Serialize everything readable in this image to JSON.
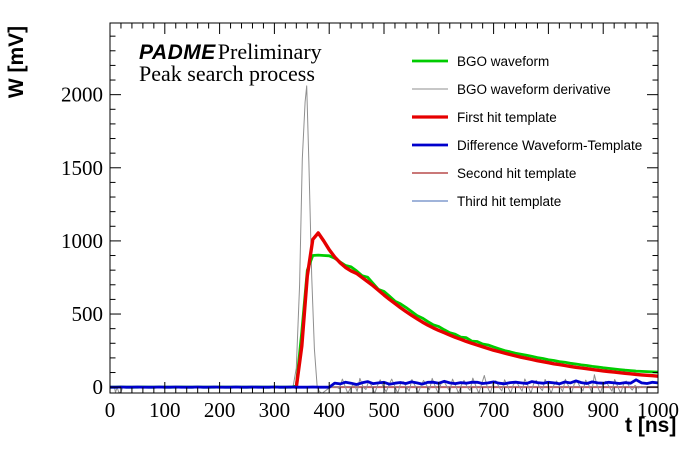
{
  "header": {
    "experiment": "PADME",
    "status": "Preliminary",
    "subtitle": "Peak search process"
  },
  "axes": {
    "x": {
      "title": "t [ns]",
      "min": 0,
      "max": 1000,
      "major_ticks": [
        0,
        100,
        200,
        300,
        400,
        500,
        600,
        700,
        800,
        900,
        1000
      ],
      "minor_step": 20
    },
    "y": {
      "title": "W [mV]",
      "min": -40,
      "max": 2490,
      "major_ticks": [
        0,
        500,
        1000,
        1500,
        2000
      ],
      "minor_step": 100,
      "minor_max": 2400
    }
  },
  "chart_data": {
    "type": "line",
    "title": "Peak search process",
    "xlabel": "t [ns]",
    "ylabel": "W [mV]",
    "xlim": [
      0,
      1000
    ],
    "ylim": [
      -40,
      2490
    ],
    "grid": false,
    "legend_position": "top-right",
    "series": [
      {
        "id": "bgo-waveform",
        "name": "BGO waveform",
        "color": "#00cc00",
        "line_width": 2.8,
        "t0": 0,
        "dt": 10,
        "values": [
          0,
          0,
          1,
          0,
          0,
          0,
          1,
          0,
          0,
          1,
          0,
          0,
          0,
          1,
          0,
          0,
          1,
          0,
          0,
          0,
          1,
          0,
          0,
          1,
          0,
          0,
          0,
          1,
          0,
          0,
          1,
          0,
          0,
          0,
          8,
          380,
          800,
          900,
          903,
          900,
          898,
          882,
          856,
          832,
          822,
          795,
          762,
          752,
          710,
          668,
          655,
          622,
          588,
          570,
          545,
          518,
          490,
          472,
          448,
          426,
          414,
          392,
          372,
          362,
          342,
          338,
          315,
          312,
          295,
          288,
          275,
          262,
          250,
          242,
          232,
          225,
          218,
          210,
          202,
          196,
          188,
          182,
          175,
          170,
          163,
          158,
          152,
          148,
          142,
          138,
          132,
          128,
          124,
          120,
          116,
          113,
          110,
          108,
          106,
          104,
          102
        ]
      },
      {
        "id": "bgo-derivative",
        "name": "BGO waveform derivative",
        "color": "#8f8f8f",
        "line_width": 1,
        "points": [
          [
            0,
            0
          ],
          [
            8,
            0
          ],
          [
            10,
            -36
          ],
          [
            13,
            -2
          ],
          [
            16,
            -36
          ],
          [
            20,
            -36
          ],
          [
            23,
            0
          ],
          [
            328,
            0
          ],
          [
            334,
            0
          ],
          [
            340,
            130
          ],
          [
            346,
            700
          ],
          [
            351,
            1560
          ],
          [
            356,
            1950
          ],
          [
            359,
            2060
          ],
          [
            363,
            1530
          ],
          [
            368,
            760
          ],
          [
            373,
            260
          ],
          [
            378,
            10
          ],
          [
            382,
            -30
          ],
          [
            387,
            -42
          ],
          [
            393,
            -25
          ],
          [
            399,
            -8
          ],
          [
            405,
            0
          ],
          [
            412,
            4
          ],
          [
            418,
            -10
          ],
          [
            424,
            55
          ],
          [
            429,
            6
          ],
          [
            434,
            -42
          ],
          [
            440,
            3
          ],
          [
            446,
            20
          ],
          [
            451,
            -30
          ],
          [
            456,
            60
          ],
          [
            462,
            0
          ],
          [
            467,
            -16
          ],
          [
            472,
            42
          ],
          [
            478,
            5
          ],
          [
            483,
            -42
          ],
          [
            488,
            10
          ],
          [
            493,
            50
          ],
          [
            499,
            0
          ],
          [
            504,
            -32
          ],
          [
            509,
            15
          ],
          [
            514,
            55
          ],
          [
            520,
            3
          ],
          [
            525,
            -42
          ],
          [
            530,
            20
          ],
          [
            535,
            38
          ],
          [
            541,
            0
          ],
          [
            546,
            -26
          ],
          [
            551,
            52
          ],
          [
            557,
            8
          ],
          [
            562,
            -42
          ],
          [
            567,
            5
          ],
          [
            572,
            46
          ],
          [
            578,
            12
          ],
          [
            583,
            -18
          ],
          [
            588,
            60
          ],
          [
            594,
            0
          ],
          [
            599,
            -42
          ],
          [
            604,
            24
          ],
          [
            609,
            42
          ],
          [
            615,
            3
          ],
          [
            620,
            -28
          ],
          [
            625,
            55
          ],
          [
            631,
            7
          ],
          [
            636,
            -42
          ],
          [
            641,
            14
          ],
          [
            646,
            46
          ],
          [
            652,
            0
          ],
          [
            657,
            -22
          ],
          [
            662,
            62
          ],
          [
            668,
            3
          ],
          [
            673,
            -42
          ],
          [
            678,
            18
          ],
          [
            683,
            80
          ],
          [
            688,
            8
          ],
          [
            694,
            -42
          ],
          [
            699,
            26
          ],
          [
            704,
            44
          ],
          [
            710,
            0
          ],
          [
            715,
            -26
          ],
          [
            720,
            50
          ],
          [
            726,
            5
          ],
          [
            731,
            -42
          ],
          [
            736,
            16
          ],
          [
            741,
            40
          ],
          [
            747,
            2
          ],
          [
            752,
            -28
          ],
          [
            757,
            56
          ],
          [
            763,
            7
          ],
          [
            768,
            -42
          ],
          [
            773,
            22
          ],
          [
            778,
            46
          ],
          [
            784,
            0
          ],
          [
            789,
            -24
          ],
          [
            794,
            52
          ],
          [
            800,
            9
          ],
          [
            805,
            -42
          ],
          [
            810,
            15
          ],
          [
            815,
            42
          ],
          [
            821,
            3
          ],
          [
            826,
            -30
          ],
          [
            831,
            54
          ],
          [
            837,
            5
          ],
          [
            842,
            -42
          ],
          [
            847,
            20
          ],
          [
            852,
            44
          ],
          [
            858,
            0
          ],
          [
            863,
            -26
          ],
          [
            868,
            48
          ],
          [
            874,
            11
          ],
          [
            879,
            -38
          ],
          [
            884,
            85
          ],
          [
            889,
            7
          ],
          [
            895,
            -42
          ],
          [
            900,
            24
          ],
          [
            905,
            40
          ],
          [
            911,
            2
          ],
          [
            916,
            -28
          ],
          [
            921,
            52
          ],
          [
            926,
            9
          ],
          [
            932,
            -42
          ],
          [
            937,
            18
          ],
          [
            942,
            42
          ],
          [
            948,
            3
          ],
          [
            953,
            -20
          ],
          [
            958,
            12
          ],
          [
            964,
            -6
          ],
          [
            970,
            5
          ],
          [
            976,
            -3
          ],
          [
            982,
            3
          ],
          [
            988,
            -2
          ],
          [
            994,
            1
          ],
          [
            1000,
            0
          ]
        ]
      },
      {
        "id": "first-hit-template",
        "name": "First hit template",
        "color": "#e60000",
        "line_width": 3.4,
        "t0": 340,
        "dt": 10,
        "values": [
          0,
          280,
          760,
          1010,
          1055,
          1000,
          940,
          890,
          850,
          818,
          795,
          778,
          750,
          722,
          694,
          662,
          630,
          600,
          572,
          544,
          517,
          492,
          468,
          445,
          424,
          405,
          388,
          372,
          356,
          341,
          327,
          313,
          300,
          288,
          276,
          264,
          253,
          243,
          233,
          223,
          214,
          205,
          197,
          189,
          181,
          174,
          167,
          160,
          154,
          148,
          142,
          136,
          131,
          126,
          121,
          116,
          111,
          107,
          103,
          99,
          95,
          91,
          87,
          84,
          81,
          78,
          75
        ]
      },
      {
        "id": "difference-waveform-template",
        "name": "Difference Waveform-Template",
        "color": "#0000cc",
        "line_width": 2.8,
        "t0": 0,
        "dt": 10,
        "values": [
          0,
          0,
          1,
          0,
          0,
          1,
          0,
          0,
          0,
          1,
          0,
          0,
          1,
          0,
          0,
          0,
          1,
          0,
          0,
          1,
          0,
          0,
          0,
          1,
          0,
          0,
          1,
          0,
          0,
          0,
          1,
          0,
          0,
          1,
          0,
          0,
          0,
          1,
          0,
          0,
          0,
          28,
          22,
          34,
          27,
          18,
          30,
          38,
          24,
          29,
          33,
          20,
          27,
          32,
          25,
          36,
          29,
          21,
          33,
          34,
          27,
          40,
          29,
          24,
          31,
          27,
          34,
          33,
          25,
          29,
          36,
          27,
          23,
          31,
          34,
          29,
          25,
          38,
          31,
          27,
          33,
          29,
          23,
          35,
          29,
          43,
          31,
          25,
          36,
          29,
          27,
          33,
          29,
          25,
          31,
          27,
          50,
          29,
          25,
          33,
          29
        ]
      },
      {
        "id": "second-hit-template",
        "name": "Second hit template",
        "color": "#c26565",
        "line_width": 1.8,
        "t0": 0,
        "dt": 1000,
        "values": [
          0,
          0
        ]
      },
      {
        "id": "third-hit-template",
        "name": "Third hit template",
        "color": "#93a9d4",
        "line_width": 1.8,
        "t0": 0,
        "dt": 1000,
        "values": [
          2,
          2
        ]
      }
    ]
  }
}
